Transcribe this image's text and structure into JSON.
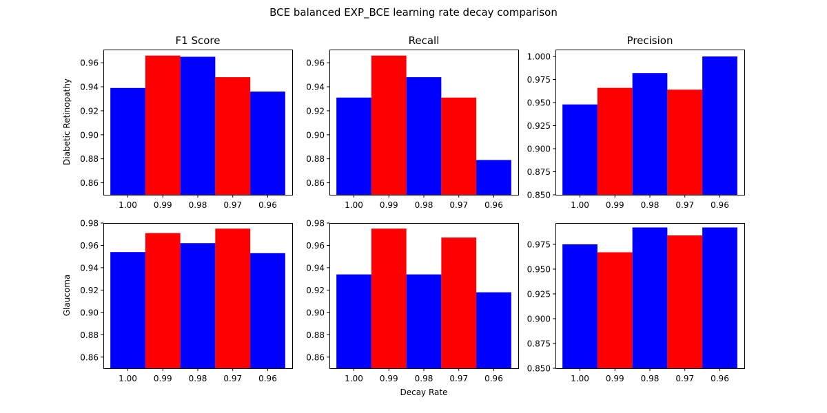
{
  "figure_title": "BCE balanced EXP_BCE learning rate decay comparison",
  "xlabel": "Decay Rate",
  "row_labels": [
    "Diabetic Retinopathy",
    "Glaucoma"
  ],
  "col_titles": [
    "F1 Score",
    "Recall",
    "Precision"
  ],
  "colors": {
    "a": "#0000ff",
    "b": "#ff0000"
  },
  "chart_data": [
    {
      "type": "bar",
      "row": "Diabetic Retinopathy",
      "title": "F1 Score",
      "ylabel": "Diabetic Retinopathy",
      "xlabel": "",
      "categories": [
        "1.00",
        "0.99",
        "0.98",
        "0.97",
        "0.96"
      ],
      "values": [
        0.939,
        0.966,
        0.965,
        0.948,
        0.936
      ],
      "bar_colors": [
        "#0000ff",
        "#ff0000",
        "#0000ff",
        "#ff0000",
        "#0000ff"
      ],
      "ylim": [
        0.85,
        0.971
      ],
      "yticks": [
        0.86,
        0.88,
        0.9,
        0.92,
        0.94,
        0.96
      ],
      "ytick_labels": [
        "0.86",
        "0.88",
        "0.90",
        "0.92",
        "0.94",
        "0.96"
      ],
      "grid": false
    },
    {
      "type": "bar",
      "row": "Diabetic Retinopathy",
      "title": "Recall",
      "ylabel": "",
      "xlabel": "",
      "categories": [
        "1.00",
        "0.99",
        "0.98",
        "0.97",
        "0.96"
      ],
      "values": [
        0.931,
        0.966,
        0.948,
        0.931,
        0.879
      ],
      "bar_colors": [
        "#0000ff",
        "#ff0000",
        "#0000ff",
        "#ff0000",
        "#0000ff"
      ],
      "ylim": [
        0.85,
        0.971
      ],
      "yticks": [
        0.86,
        0.88,
        0.9,
        0.92,
        0.94,
        0.96
      ],
      "ytick_labels": [
        "0.86",
        "0.88",
        "0.90",
        "0.92",
        "0.94",
        "0.96"
      ],
      "grid": false
    },
    {
      "type": "bar",
      "row": "Diabetic Retinopathy",
      "title": "Precision",
      "ylabel": "",
      "xlabel": "",
      "categories": [
        "1.00",
        "0.99",
        "0.98",
        "0.97",
        "0.96"
      ],
      "values": [
        0.948,
        0.966,
        0.982,
        0.964,
        1.0
      ],
      "bar_colors": [
        "#0000ff",
        "#ff0000",
        "#0000ff",
        "#ff0000",
        "#0000ff"
      ],
      "ylim": [
        0.85,
        1.0075
      ],
      "yticks": [
        0.85,
        0.875,
        0.9,
        0.925,
        0.95,
        0.975,
        1.0
      ],
      "ytick_labels": [
        "0.850",
        "0.875",
        "0.900",
        "0.925",
        "0.950",
        "0.975",
        "1.000"
      ],
      "grid": false
    },
    {
      "type": "bar",
      "row": "Glaucoma",
      "title": "",
      "ylabel": "Glaucoma",
      "xlabel": "",
      "categories": [
        "1.00",
        "0.99",
        "0.98",
        "0.97",
        "0.96"
      ],
      "values": [
        0.954,
        0.971,
        0.962,
        0.975,
        0.953
      ],
      "bar_colors": [
        "#0000ff",
        "#ff0000",
        "#0000ff",
        "#ff0000",
        "#0000ff"
      ],
      "ylim": [
        0.85,
        0.98
      ],
      "yticks": [
        0.86,
        0.88,
        0.9,
        0.92,
        0.94,
        0.96,
        0.98
      ],
      "ytick_labels": [
        "0.86",
        "0.88",
        "0.90",
        "0.92",
        "0.94",
        "0.96",
        "0.98"
      ],
      "grid": false
    },
    {
      "type": "bar",
      "row": "Glaucoma",
      "title": "",
      "ylabel": "",
      "xlabel": "Decay Rate",
      "categories": [
        "1.00",
        "0.99",
        "0.98",
        "0.97",
        "0.96"
      ],
      "values": [
        0.934,
        0.975,
        0.934,
        0.967,
        0.918
      ],
      "bar_colors": [
        "#0000ff",
        "#ff0000",
        "#0000ff",
        "#ff0000",
        "#0000ff"
      ],
      "ylim": [
        0.85,
        0.98
      ],
      "yticks": [
        0.86,
        0.88,
        0.9,
        0.92,
        0.94,
        0.96,
        0.98
      ],
      "ytick_labels": [
        "0.86",
        "0.88",
        "0.90",
        "0.92",
        "0.94",
        "0.96",
        "0.98"
      ],
      "grid": false
    },
    {
      "type": "bar",
      "row": "Glaucoma",
      "title": "",
      "ylabel": "",
      "xlabel": "",
      "categories": [
        "1.00",
        "0.99",
        "0.98",
        "0.97",
        "0.96"
      ],
      "values": [
        0.975,
        0.967,
        0.992,
        0.984,
        0.992
      ],
      "bar_colors": [
        "#0000ff",
        "#ff0000",
        "#0000ff",
        "#ff0000",
        "#0000ff"
      ],
      "ylim": [
        0.85,
        0.9965
      ],
      "yticks": [
        0.85,
        0.875,
        0.9,
        0.925,
        0.95,
        0.975
      ],
      "ytick_labels": [
        "0.850",
        "0.875",
        "0.900",
        "0.925",
        "0.950",
        "0.975"
      ],
      "grid": false
    }
  ]
}
